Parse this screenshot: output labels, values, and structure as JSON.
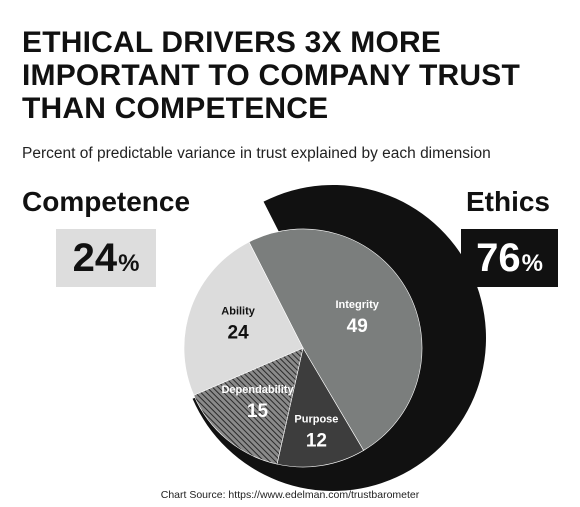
{
  "title_lines": [
    "ETHICAL DRIVERS 3X MORE",
    "IMPORTANT TO COMPANY TRUST",
    "THAN COMPETENCE"
  ],
  "subtitle": "Percent of predictable variance in trust explained by each dimension",
  "groups": {
    "competence": {
      "label": "Competence",
      "value": "24",
      "unit": "%"
    },
    "ethics": {
      "label": "Ethics",
      "value": "76",
      "unit": "%"
    }
  },
  "source": "Chart Source: https://www.edelman.com/trustbarometer",
  "colors": {
    "integrity": "#7b7e7d",
    "purpose": "#3d3d3d",
    "dependability": "#5a5a5a",
    "ability": "#dcdcdc",
    "ring": "#111111",
    "box_light": "#dddddd",
    "box_dark": "#111111"
  },
  "chart_data": {
    "type": "pie",
    "title": "ETHICAL DRIVERS 3X MORE IMPORTANT TO COMPANY TRUST THAN COMPETENCE",
    "subtitle": "Percent of predictable variance in trust explained by each dimension",
    "slices": [
      {
        "label": "Integrity",
        "value": 49,
        "group": "Ethics",
        "pattern": "solid"
      },
      {
        "label": "Purpose",
        "value": 12,
        "group": "Ethics",
        "pattern": "solid"
      },
      {
        "label": "Dependability",
        "value": 15,
        "group": "Ethics",
        "pattern": "hatched"
      },
      {
        "label": "Ability",
        "value": 24,
        "group": "Competence",
        "pattern": "solid"
      }
    ],
    "groups": [
      {
        "name": "Competence",
        "value": 24
      },
      {
        "name": "Ethics",
        "value": 76
      }
    ]
  }
}
